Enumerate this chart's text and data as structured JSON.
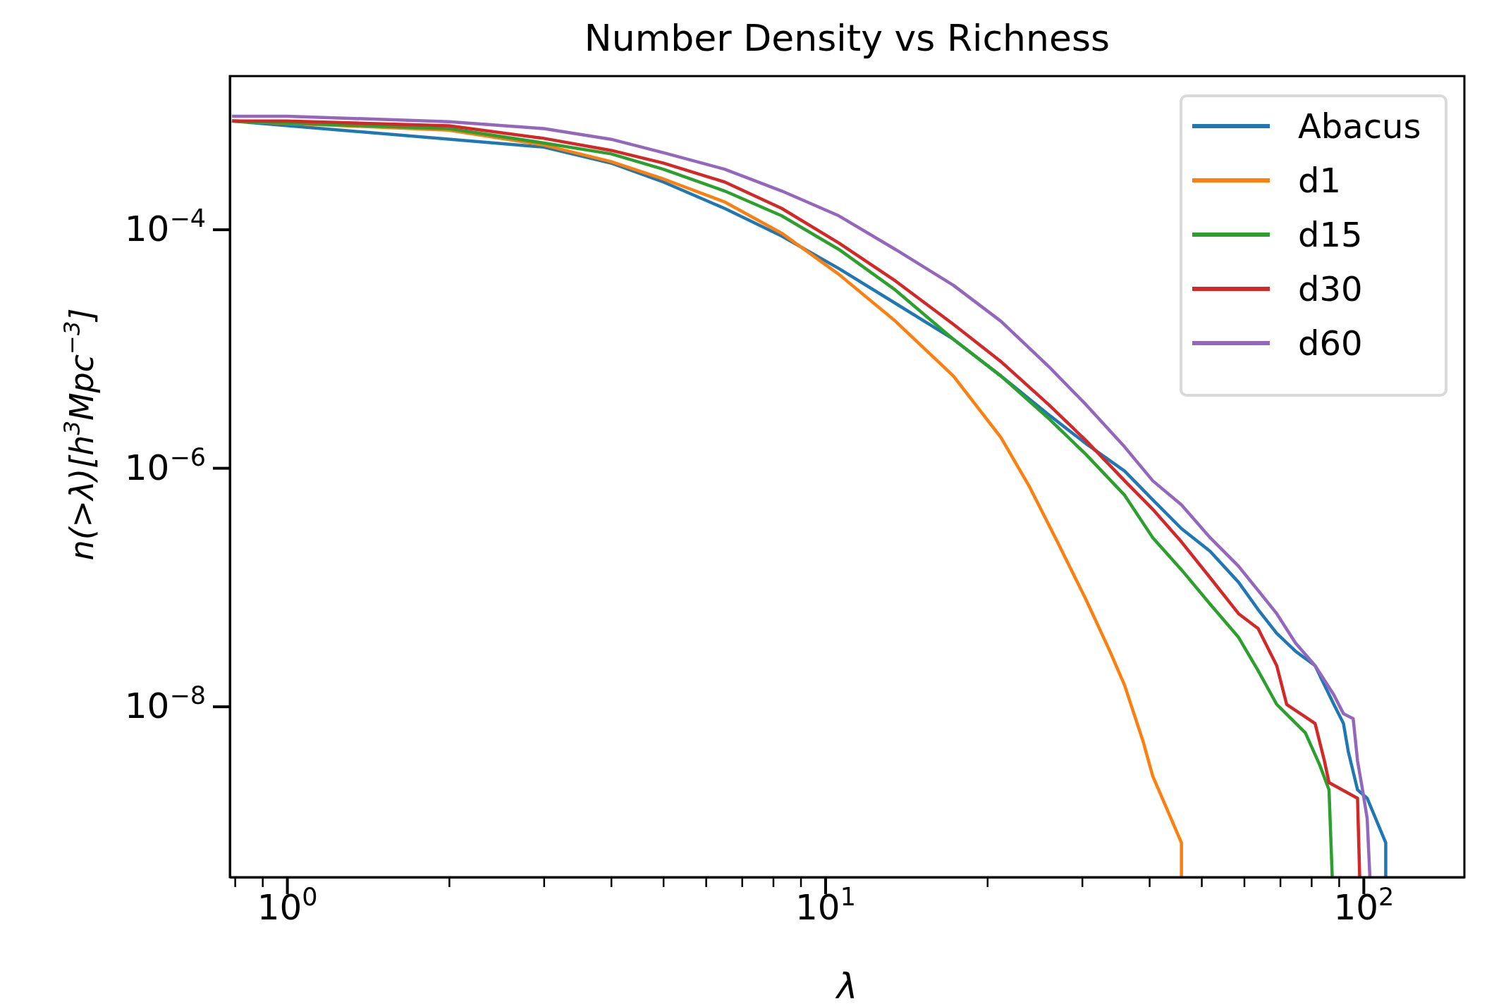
{
  "chart_data": {
    "type": "line",
    "title": "Number Density vs Richness",
    "xlabel": "λ",
    "ylabel": "n(>λ)[h$^{3}$Mpc$^{−3}$]",
    "log": "xy",
    "xlim": [
      0.783,
      154
    ],
    "ylim": [
      3.7e-10,
      0.00193
    ],
    "xticks": [
      {
        "value": 0.8,
        "label": null
      },
      {
        "value": 0.9,
        "label": null
      },
      {
        "value": 1,
        "label": "10$^{0}$"
      },
      {
        "value": 2,
        "label": null
      },
      {
        "value": 3,
        "label": null
      },
      {
        "value": 4,
        "label": null
      },
      {
        "value": 5,
        "label": null
      },
      {
        "value": 6,
        "label": null
      },
      {
        "value": 7,
        "label": null
      },
      {
        "value": 8,
        "label": null
      },
      {
        "value": 9,
        "label": null
      },
      {
        "value": 10,
        "label": "10$^{1}$"
      },
      {
        "value": 20,
        "label": null
      },
      {
        "value": 30,
        "label": null
      },
      {
        "value": 40,
        "label": null
      },
      {
        "value": 50,
        "label": null
      },
      {
        "value": 60,
        "label": null
      },
      {
        "value": 70,
        "label": null
      },
      {
        "value": 80,
        "label": null
      },
      {
        "value": 90,
        "label": null
      },
      {
        "value": 100,
        "label": "10$^{2}$"
      }
    ],
    "yticks": [
      {
        "value": 0.0001,
        "label": "10$^{−4}$"
      },
      {
        "value": 1e-06,
        "label": "10$^{−6}$"
      },
      {
        "value": 1e-08,
        "label": "10$^{−8}$"
      }
    ],
    "grid": false,
    "legend": "top right",
    "line_style": "solid",
    "marker": "none",
    "series": [
      {
        "name": "Abacus",
        "color": "#1f77b4",
        "x": [
          0.79,
          3,
          4,
          5,
          6.5,
          8.3,
          10.6,
          13.5,
          17.3,
          21.2,
          26,
          30.5,
          36,
          40.6,
          45.9,
          51.9,
          58.6,
          63.7,
          69,
          74.8,
          81.3,
          88.1,
          91.8,
          93.7,
          97.5,
          101.6,
          110,
          110
        ],
        "values": [
          0.00081,
          0.00049,
          0.00036,
          0.00025,
          0.00015,
          8.8e-05,
          4.7e-05,
          2.4e-05,
          1.2e-05,
          5.9e-06,
          2.8e-06,
          1.6e-06,
          9.4e-07,
          5.4e-07,
          3.1e-07,
          2e-07,
          1.1e-07,
          6.5e-08,
          4.1e-08,
          2.9e-08,
          2.2e-08,
          1.04e-08,
          7.2e-09,
          4.2e-09,
          2e-09,
          1.7e-09,
          7.2e-10,
          3.7e-10
        ]
      },
      {
        "name": "d1",
        "color": "#ff7f0e",
        "x": [
          0.79,
          2,
          3,
          4,
          5,
          6.5,
          8.3,
          10.6,
          13.5,
          17.3,
          21.2,
          23.9,
          27,
          30.5,
          33.8,
          36,
          39,
          40.6,
          45.9,
          45.9
        ],
        "values": [
          0.00081,
          0.00068,
          0.00051,
          0.00037,
          0.000265,
          0.00017,
          9.3e-05,
          4.2e-05,
          1.7e-05,
          5.9e-06,
          1.8e-06,
          7.1e-07,
          2.4e-07,
          7.9e-08,
          2.9e-08,
          1.5e-08,
          5e-09,
          2.6e-09,
          7.2e-10,
          3.7e-10
        ]
      },
      {
        "name": "d15",
        "color": "#2ca02c",
        "x": [
          0.79,
          2,
          3,
          4,
          5,
          6.5,
          8.3,
          10.6,
          13.5,
          17.3,
          21.2,
          26,
          30.5,
          36,
          40.6,
          45.9,
          51.9,
          58.6,
          63.7,
          69,
          78,
          83,
          86.3,
          87.5
        ],
        "values": [
          0.00081,
          0.0007,
          0.00053,
          0.00043,
          0.00032,
          0.00021,
          0.00013,
          6.8e-05,
          3.1e-05,
          1.2e-05,
          5.9e-06,
          2.6e-06,
          1.3e-06,
          5.9e-07,
          2.6e-07,
          1.4e-07,
          7.2e-08,
          3.8e-08,
          2e-08,
          1.04e-08,
          6e-09,
          3.2e-09,
          2e-09,
          3.7e-10
        ]
      },
      {
        "name": "d30",
        "color": "#d62728",
        "x": [
          0.79,
          1,
          2,
          3,
          4,
          5,
          6.5,
          8.3,
          10.6,
          13.5,
          17.3,
          21.2,
          26,
          30.5,
          36,
          40.6,
          45.9,
          51.9,
          58.6,
          63.7,
          69,
          72,
          81.3,
          84.6,
          86.3,
          97.5,
          98.4
        ],
        "values": [
          0.00081,
          0.00081,
          0.00074,
          0.00058,
          0.00046,
          0.00036,
          0.00025,
          0.00015,
          7.7e-05,
          3.7e-05,
          1.6e-05,
          7.8e-06,
          3.4e-06,
          1.7e-06,
          7.8e-07,
          4.5e-07,
          2.4e-07,
          1.2e-07,
          6e-08,
          4.5e-08,
          2.2e-08,
          1.04e-08,
          7.2e-09,
          3.5e-09,
          2.3e-09,
          1.7e-09,
          3.7e-10
        ]
      },
      {
        "name": "d60",
        "color": "#9467bd",
        "x": [
          0.79,
          1,
          2,
          3,
          4,
          5,
          6.5,
          8.3,
          10.6,
          13.5,
          17.3,
          21.2,
          26,
          30.5,
          36,
          40.6,
          45.9,
          51.9,
          58.6,
          63.7,
          69,
          74.8,
          81.3,
          88.1,
          91.8,
          95.7,
          97.5,
          99.6,
          101.6,
          102.8
        ],
        "values": [
          0.00089,
          0.00089,
          0.0008,
          0.0007,
          0.00057,
          0.00044,
          0.00032,
          0.00021,
          0.00013,
          6.8e-05,
          3.4e-05,
          1.7e-05,
          7.1e-06,
          3.4e-06,
          1.5e-06,
          7.8e-07,
          4.9e-07,
          2.6e-07,
          1.5e-07,
          9.4e-08,
          6e-08,
          3.4e-08,
          2.2e-08,
          1.25e-08,
          8.7e-09,
          7.9e-09,
          3.5e-09,
          2e-09,
          1.15e-09,
          3.7e-10
        ]
      }
    ]
  }
}
